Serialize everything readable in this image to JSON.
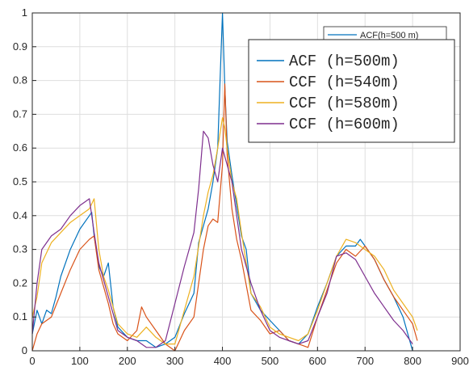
{
  "chart_data": {
    "type": "line",
    "title": "",
    "xlabel": "",
    "ylabel": "",
    "xlim": [
      0,
      900
    ],
    "ylim": [
      0,
      1
    ],
    "xticks": [
      "0",
      "100",
      "200",
      "300",
      "400",
      "500",
      "600",
      "700",
      "800",
      "900"
    ],
    "yticks": [
      "0",
      "0.1",
      "0.2",
      "0.3",
      "0.4",
      "0.5",
      "0.6",
      "0.7",
      "0.8",
      "0.9",
      "1"
    ],
    "grid": true,
    "legend_position": "top-right",
    "background_legend": {
      "label": "ACF(h=500 m)",
      "color": "#0072BD"
    },
    "series": [
      {
        "name": "ACF (h=500m)",
        "color": "#0072BD",
        "x": [
          0,
          10,
          20,
          30,
          40,
          50,
          60,
          80,
          100,
          120,
          125,
          130,
          140,
          150,
          160,
          170,
          180,
          200,
          220,
          240,
          260,
          280,
          300,
          320,
          340,
          350,
          360,
          370,
          380,
          390,
          395,
          400,
          405,
          410,
          420,
          430,
          440,
          450,
          460,
          480,
          500,
          520,
          540,
          560,
          580,
          600,
          620,
          640,
          660,
          680,
          690,
          700,
          720,
          740,
          760,
          780,
          800
        ],
        "y": [
          0.05,
          0.12,
          0.08,
          0.12,
          0.11,
          0.16,
          0.22,
          0.3,
          0.36,
          0.4,
          0.41,
          0.34,
          0.25,
          0.22,
          0.26,
          0.13,
          0.07,
          0.04,
          0.03,
          0.03,
          0.01,
          0.02,
          0.04,
          0.11,
          0.17,
          0.32,
          0.37,
          0.42,
          0.5,
          0.6,
          0.8,
          1.0,
          0.78,
          0.62,
          0.52,
          0.43,
          0.34,
          0.3,
          0.17,
          0.12,
          0.09,
          0.06,
          0.03,
          0.02,
          0.05,
          0.13,
          0.2,
          0.28,
          0.31,
          0.31,
          0.33,
          0.31,
          0.27,
          0.21,
          0.16,
          0.1,
          0.0
        ]
      },
      {
        "name": "CCF (h=540m)",
        "color": "#D95319",
        "x": [
          0,
          10,
          20,
          40,
          60,
          80,
          100,
          120,
          130,
          140,
          160,
          170,
          180,
          200,
          220,
          230,
          240,
          260,
          280,
          300,
          320,
          340,
          360,
          370,
          380,
          390,
          400,
          405,
          410,
          420,
          430,
          440,
          460,
          480,
          500,
          520,
          540,
          560,
          580,
          600,
          620,
          640,
          660,
          680,
          700,
          720,
          740,
          760,
          780,
          800,
          810
        ],
        "y": [
          0.0,
          0.05,
          0.08,
          0.1,
          0.17,
          0.24,
          0.3,
          0.33,
          0.34,
          0.24,
          0.14,
          0.08,
          0.05,
          0.03,
          0.06,
          0.13,
          0.1,
          0.06,
          0.02,
          0.0,
          0.06,
          0.1,
          0.3,
          0.37,
          0.39,
          0.38,
          0.55,
          0.79,
          0.58,
          0.42,
          0.33,
          0.27,
          0.12,
          0.09,
          0.05,
          0.06,
          0.03,
          0.02,
          0.01,
          0.1,
          0.18,
          0.26,
          0.3,
          0.28,
          0.31,
          0.27,
          0.21,
          0.16,
          0.12,
          0.08,
          0.03
        ]
      },
      {
        "name": "CCF (h=580m)",
        "color": "#EDB120",
        "x": [
          0,
          10,
          20,
          40,
          60,
          80,
          100,
          120,
          130,
          140,
          150,
          160,
          180,
          200,
          220,
          240,
          260,
          280,
          300,
          320,
          340,
          360,
          370,
          380,
          390,
          400,
          405,
          410,
          420,
          430,
          440,
          460,
          480,
          500,
          520,
          540,
          560,
          580,
          600,
          620,
          640,
          660,
          680,
          700,
          720,
          740,
          760,
          780,
          800,
          810
        ],
        "y": [
          0.1,
          0.16,
          0.26,
          0.32,
          0.35,
          0.38,
          0.4,
          0.42,
          0.45,
          0.3,
          0.22,
          0.18,
          0.08,
          0.05,
          0.04,
          0.07,
          0.04,
          0.02,
          0.02,
          0.12,
          0.22,
          0.4,
          0.47,
          0.52,
          0.6,
          0.69,
          0.66,
          0.6,
          0.5,
          0.45,
          0.35,
          0.17,
          0.13,
          0.07,
          0.05,
          0.04,
          0.03,
          0.05,
          0.12,
          0.2,
          0.28,
          0.33,
          0.32,
          0.3,
          0.28,
          0.24,
          0.18,
          0.14,
          0.1,
          0.06
        ]
      },
      {
        "name": "CCF (h=600m)",
        "color": "#7E2F8E",
        "x": [
          0,
          10,
          20,
          40,
          60,
          80,
          100,
          110,
          120,
          130,
          140,
          160,
          180,
          200,
          220,
          240,
          260,
          280,
          300,
          320,
          340,
          350,
          360,
          370,
          380,
          390,
          400,
          410,
          420,
          430,
          440,
          460,
          480,
          500,
          520,
          540,
          560,
          580,
          600,
          620,
          640,
          660,
          680,
          700,
          720,
          740,
          760,
          780,
          800
        ],
        "y": [
          0.05,
          0.2,
          0.3,
          0.34,
          0.36,
          0.4,
          0.43,
          0.44,
          0.45,
          0.35,
          0.26,
          0.16,
          0.06,
          0.04,
          0.03,
          0.01,
          0.01,
          0.03,
          0.14,
          0.25,
          0.35,
          0.48,
          0.65,
          0.63,
          0.55,
          0.5,
          0.6,
          0.55,
          0.5,
          0.4,
          0.3,
          0.2,
          0.12,
          0.06,
          0.04,
          0.03,
          0.02,
          0.03,
          0.1,
          0.17,
          0.28,
          0.29,
          0.27,
          0.22,
          0.17,
          0.13,
          0.09,
          0.06,
          0.02
        ]
      }
    ]
  }
}
